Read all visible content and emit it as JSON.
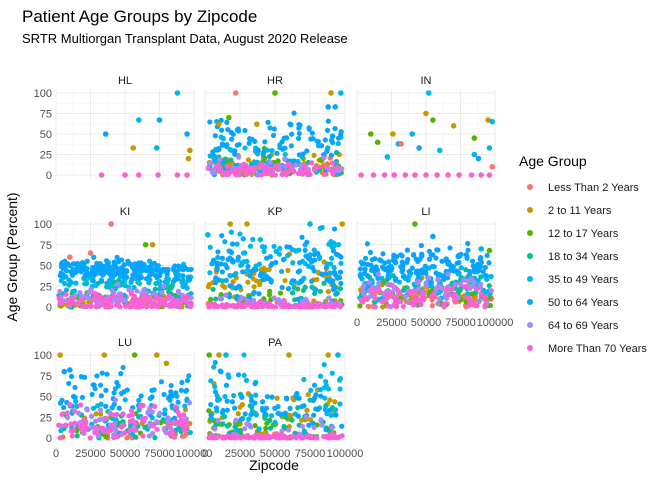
{
  "chart_data": {
    "type": "scatter",
    "title": "Patient Age Groups by Zipcode",
    "subtitle": "SRTR Multiorgan Transplant Data, August 2020 Release",
    "xlabel": "Zipcode",
    "ylabel": "Age Group (Percent)",
    "xlim": [
      0,
      100000
    ],
    "ylim": [
      0,
      100
    ],
    "x_ticks": [
      0,
      25000,
      50000,
      75000,
      100000
    ],
    "x_tick_labels": [
      "0",
      "25000",
      "50000",
      "75000",
      "100000"
    ],
    "y_ticks": [
      0,
      25,
      50,
      75,
      100
    ],
    "y_tick_labels": [
      "0",
      "25",
      "50",
      "75",
      "100"
    ],
    "grid": true,
    "legend": {
      "title": "Age Group",
      "position": "right",
      "entries": [
        {
          "label": "Less Than 2 Years",
          "color": "#F8766D"
        },
        {
          "label": "2 to 11 Years",
          "color": "#C49A00"
        },
        {
          "label": "12 to 17 Years",
          "color": "#53B400"
        },
        {
          "label": "18 to 34 Years",
          "color": "#00C094"
        },
        {
          "label": "35 to 49 Years",
          "color": "#00B6EB"
        },
        {
          "label": "50 to 64 Years",
          "color": "#06A4FF"
        },
        {
          "label": "64 to 69 Years",
          "color": "#A58AFF"
        },
        {
          "label": "More Than 70 Years",
          "color": "#FB61D7"
        }
      ]
    },
    "facets": [
      {
        "label": "HL",
        "points": [
          {
            "x": 36000,
            "y": 50,
            "g": 5
          },
          {
            "x": 56000,
            "y": 33,
            "g": 1
          },
          {
            "x": 88000,
            "y": 100,
            "g": 4
          },
          {
            "x": 75000,
            "y": 67,
            "g": 5
          },
          {
            "x": 73000,
            "y": 33,
            "g": 4
          },
          {
            "x": 95000,
            "y": 50,
            "g": 5
          },
          {
            "x": 97000,
            "y": 30,
            "g": 1
          },
          {
            "x": 96000,
            "y": 20,
            "g": 1
          },
          {
            "x": 60000,
            "y": 67,
            "g": 4
          },
          {
            "x": 74000,
            "y": 0,
            "g": 7
          },
          {
            "x": 33000,
            "y": 0,
            "g": 7
          },
          {
            "x": 50000,
            "y": 0,
            "g": 7
          },
          {
            "x": 60000,
            "y": 0,
            "g": 7
          },
          {
            "x": 88000,
            "y": 0,
            "g": 7
          },
          {
            "x": 95000,
            "y": 0,
            "g": 7
          }
        ]
      },
      {
        "label": "HR",
        "points": [
          {
            "x": 22000,
            "y": 100,
            "g": 0
          },
          {
            "x": 50000,
            "y": 100,
            "g": 2
          },
          {
            "x": 90000,
            "y": 100,
            "g": 1
          },
          {
            "x": 97000,
            "y": 100,
            "g": 4
          },
          {
            "x": 88000,
            "y": 83,
            "g": 5
          },
          {
            "x": 93000,
            "y": 83,
            "g": 5
          },
          {
            "x": 17000,
            "y": 70,
            "g": 2
          },
          {
            "x": 10000,
            "y": 62,
            "g": 1
          },
          {
            "x": 37000,
            "y": 62,
            "g": 1
          }
        ]
      },
      {
        "label": "IN",
        "points": [
          {
            "x": 52000,
            "y": 100,
            "g": 4
          },
          {
            "x": 50000,
            "y": 75,
            "g": 1
          },
          {
            "x": 70000,
            "y": 60,
            "g": 1
          },
          {
            "x": 55000,
            "y": 67,
            "g": 2
          },
          {
            "x": 95000,
            "y": 67,
            "g": 1
          },
          {
            "x": 98000,
            "y": 65,
            "g": 4
          },
          {
            "x": 10000,
            "y": 50,
            "g": 2
          },
          {
            "x": 26000,
            "y": 50,
            "g": 1
          },
          {
            "x": 85000,
            "y": 45,
            "g": 2
          },
          {
            "x": 40000,
            "y": 50,
            "g": 4
          },
          {
            "x": 30000,
            "y": 38,
            "g": 4
          },
          {
            "x": 15000,
            "y": 40,
            "g": 2
          },
          {
            "x": 45000,
            "y": 33,
            "g": 5
          },
          {
            "x": 32000,
            "y": 38,
            "g": 0
          },
          {
            "x": 96000,
            "y": 33,
            "g": 4
          },
          {
            "x": 60000,
            "y": 30,
            "g": 4
          },
          {
            "x": 85000,
            "y": 25,
            "g": 4
          },
          {
            "x": 22000,
            "y": 22,
            "g": 4
          },
          {
            "x": 88000,
            "y": 20,
            "g": 5
          },
          {
            "x": 98000,
            "y": 10,
            "g": 0
          },
          {
            "x": 3000,
            "y": 0,
            "g": 7
          },
          {
            "x": 12000,
            "y": 0,
            "g": 7
          },
          {
            "x": 20000,
            "y": 0,
            "g": 7
          },
          {
            "x": 27000,
            "y": 0,
            "g": 7
          },
          {
            "x": 35000,
            "y": 0,
            "g": 7
          },
          {
            "x": 42000,
            "y": 0,
            "g": 7
          },
          {
            "x": 50000,
            "y": 0,
            "g": 7
          },
          {
            "x": 58000,
            "y": 0,
            "g": 7
          },
          {
            "x": 66000,
            "y": 0,
            "g": 7
          },
          {
            "x": 74000,
            "y": 0,
            "g": 7
          },
          {
            "x": 83000,
            "y": 0,
            "g": 7
          },
          {
            "x": 90000,
            "y": 0,
            "g": 7
          },
          {
            "x": 96000,
            "y": 0,
            "g": 7
          }
        ]
      },
      {
        "label": "KI",
        "points": [
          {
            "x": 40000,
            "y": 100,
            "g": 0
          },
          {
            "x": 65000,
            "y": 75,
            "g": 2
          },
          {
            "x": 70000,
            "y": 75,
            "g": 1
          },
          {
            "x": 25000,
            "y": 65,
            "g": 0
          },
          {
            "x": 10000,
            "y": 60,
            "g": 0
          }
        ]
      },
      {
        "label": "KP",
        "points": [
          {
            "x": 2000,
            "y": 87,
            "g": 4
          },
          {
            "x": 18000,
            "y": 100,
            "g": 1
          },
          {
            "x": 30000,
            "y": 100,
            "g": 1
          },
          {
            "x": 75000,
            "y": 100,
            "g": 4
          },
          {
            "x": 98000,
            "y": 100,
            "g": 1
          }
        ]
      },
      {
        "label": "LI",
        "points": [
          {
            "x": 42000,
            "y": 100,
            "g": 2
          },
          {
            "x": 55000,
            "y": 85,
            "g": 5
          },
          {
            "x": 90000,
            "y": 70,
            "g": 4
          },
          {
            "x": 96000,
            "y": 68,
            "g": 2
          }
        ]
      },
      {
        "label": "LU",
        "points": [
          {
            "x": 3000,
            "y": 100,
            "g": 1
          },
          {
            "x": 35000,
            "y": 100,
            "g": 1
          },
          {
            "x": 57000,
            "y": 100,
            "g": 2
          },
          {
            "x": 73000,
            "y": 100,
            "g": 1
          },
          {
            "x": 80000,
            "y": 90,
            "g": 1
          },
          {
            "x": 10000,
            "y": 82,
            "g": 5
          },
          {
            "x": 6000,
            "y": 80,
            "g": 5
          }
        ]
      },
      {
        "label": "PA",
        "points": [
          {
            "x": 3000,
            "y": 100,
            "g": 2
          },
          {
            "x": 10000,
            "y": 100,
            "g": 1
          },
          {
            "x": 15000,
            "y": 100,
            "g": 4
          },
          {
            "x": 60000,
            "y": 100,
            "g": 1
          },
          {
            "x": 88000,
            "y": 100,
            "g": 1
          },
          {
            "x": 95000,
            "y": 100,
            "g": 4
          }
        ]
      }
    ]
  }
}
